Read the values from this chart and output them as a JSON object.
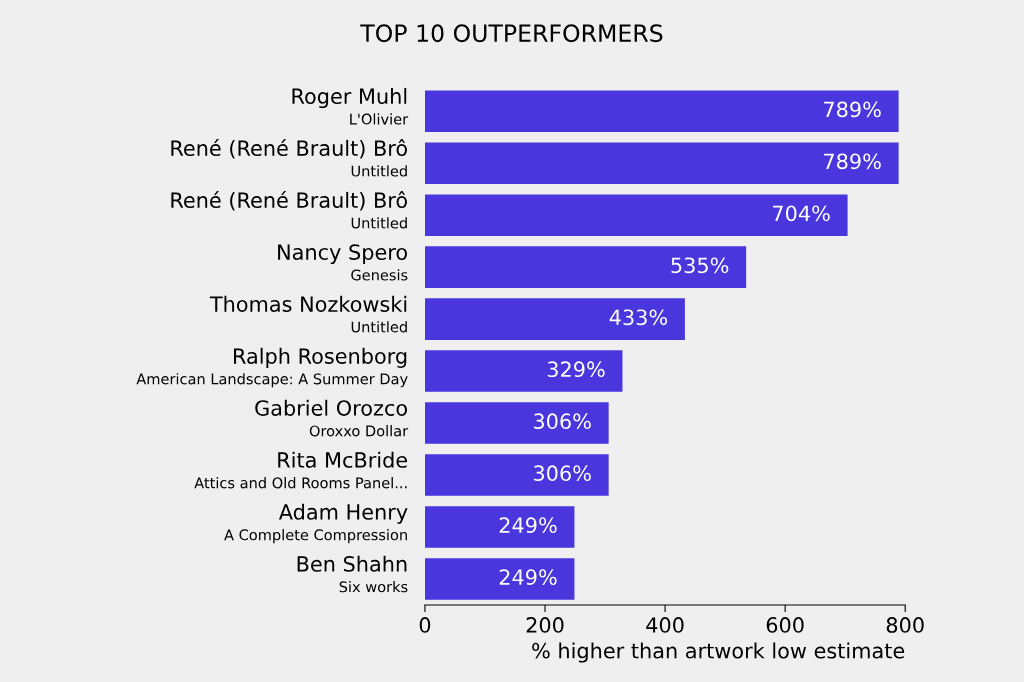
{
  "chart_data": {
    "type": "bar",
    "orientation": "horizontal",
    "title": "TOP 10 OUTPERFORMERS",
    "xlabel": "% higher than artwork low estimate",
    "categories": [
      "Roger Muhl\nL'Olivier",
      "René (René Brault) Brô\nUntitled",
      "René (René Brault) Brô\nUntitled",
      "Nancy Spero\nGenesis",
      "Thomas Nozkowski\nUntitled",
      "Ralph Rosenborg\nAmerican Landscape: A Summer Day",
      "Gabriel Orozco\nOroxxo Dollar",
      "Rita McBride\nAttics and Old Rooms Panel...",
      "Adam Henry\nA Complete Compression",
      "Ben Shahn\nSix works"
    ],
    "values": [
      789,
      789,
      704,
      535,
      433,
      329,
      306,
      306,
      249,
      249
    ],
    "value_labels": [
      "789%",
      "789%",
      "704%",
      "535%",
      "433%",
      "329%",
      "306%",
      "306%",
      "249%",
      "249%"
    ],
    "color": "#4936dc",
    "xlim": [
      0,
      800
    ],
    "xticks": [
      0,
      200,
      400,
      600,
      800
    ],
    "grid": false,
    "legend": false
  }
}
